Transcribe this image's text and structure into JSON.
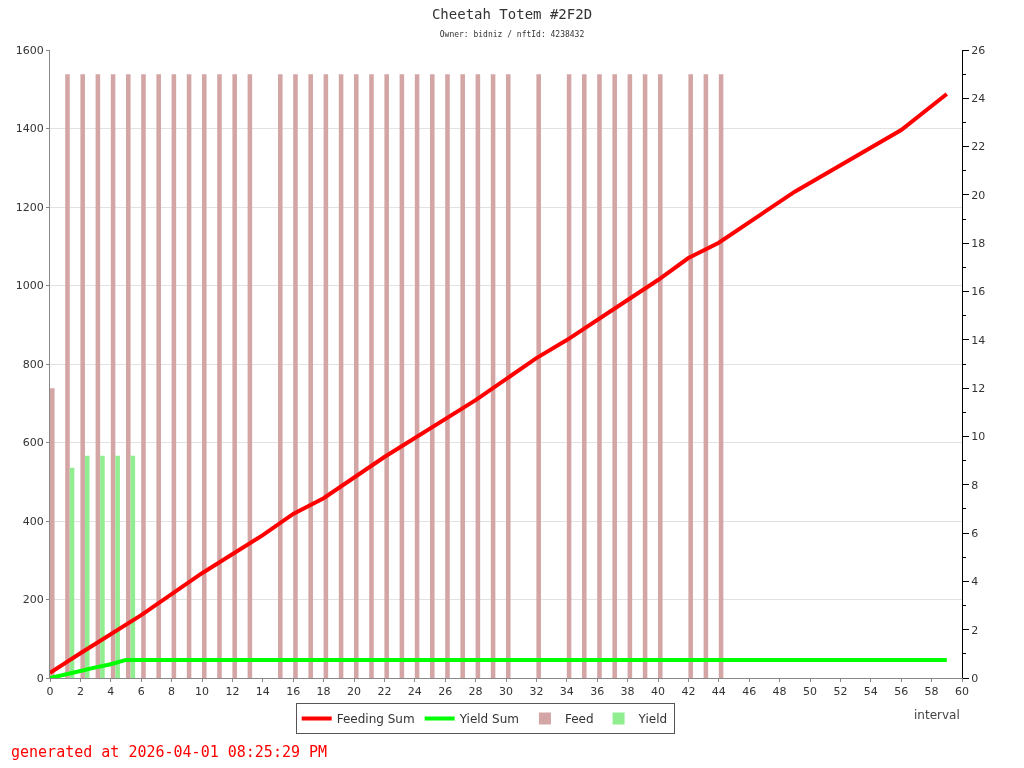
{
  "chart_data": {
    "type": "bar",
    "title": "Cheetah Totem #2F2D",
    "subtitle": "Owner: bidniz / nftId: 4238432",
    "xlabel": "interval",
    "annotations": [
      "generated at 2026-04-01 08:25:29 PM"
    ],
    "series": [
      {
        "name": "Feeding Sum",
        "type": "line",
        "color": "#ff0000",
        "x": [
          0,
          2,
          6,
          10,
          14,
          16,
          18,
          22,
          28,
          32,
          34,
          38,
          40,
          42,
          44,
          49,
          56,
          59
        ],
        "values": [
          13,
          63,
          160,
          267,
          364,
          418,
          458,
          563,
          708,
          815,
          861,
          963,
          1014,
          1070,
          1109,
          1239,
          1396,
          1488
        ]
      },
      {
        "name": "Yield Sum",
        "type": "line",
        "color": "#00ff00",
        "x": [
          0,
          1,
          2,
          3,
          4,
          5,
          59
        ],
        "values": [
          0,
          9,
          18,
          27,
          35,
          46,
          46
        ]
      },
      {
        "name": "Feed",
        "axis": "y2",
        "color": "#d4a5a5",
        "x": [
          0,
          1,
          2,
          3,
          4,
          5,
          6,
          7,
          8,
          9,
          10,
          11,
          12,
          13,
          14,
          15,
          16,
          17,
          18,
          19,
          20,
          21,
          22,
          23,
          24,
          25,
          26,
          27,
          28,
          29,
          30,
          31,
          32,
          33,
          34,
          35,
          36,
          37,
          38,
          39,
          40,
          41,
          42,
          43,
          44
        ],
        "values": [
          12,
          25,
          25,
          25,
          25,
          25,
          25,
          25,
          25,
          25,
          25,
          25,
          25,
          25,
          null,
          25,
          25,
          25,
          25,
          25,
          25,
          25,
          25,
          25,
          25,
          25,
          25,
          25,
          25,
          25,
          25,
          null,
          25,
          null,
          25,
          25,
          25,
          25,
          25,
          25,
          25,
          null,
          25,
          25,
          25
        ]
      },
      {
        "name": "Yield",
        "axis": "y2",
        "color": "#90ee90",
        "x": [
          1,
          2,
          3,
          4,
          5
        ],
        "values": [
          8.7,
          9.2,
          9.2,
          9.2,
          9.2
        ]
      }
    ],
    "xlim": [
      0,
      60
    ],
    "xticks": [
      0,
      2,
      4,
      6,
      8,
      10,
      12,
      14,
      16,
      18,
      20,
      22,
      24,
      26,
      28,
      30,
      32,
      34,
      36,
      38,
      40,
      42,
      44,
      46,
      48,
      50,
      52,
      54,
      56,
      58,
      60
    ],
    "ylim": [
      0,
      1600
    ],
    "yticks": [
      0,
      200,
      400,
      600,
      800,
      1000,
      1200,
      1400,
      1600
    ],
    "y2lim": [
      0,
      26
    ],
    "y2ticks": [
      0,
      2,
      4,
      6,
      8,
      10,
      12,
      14,
      16,
      18,
      20,
      22,
      24,
      26
    ],
    "grid": "y",
    "legend": "bottom",
    "marker": "none",
    "line_style": "solid"
  }
}
